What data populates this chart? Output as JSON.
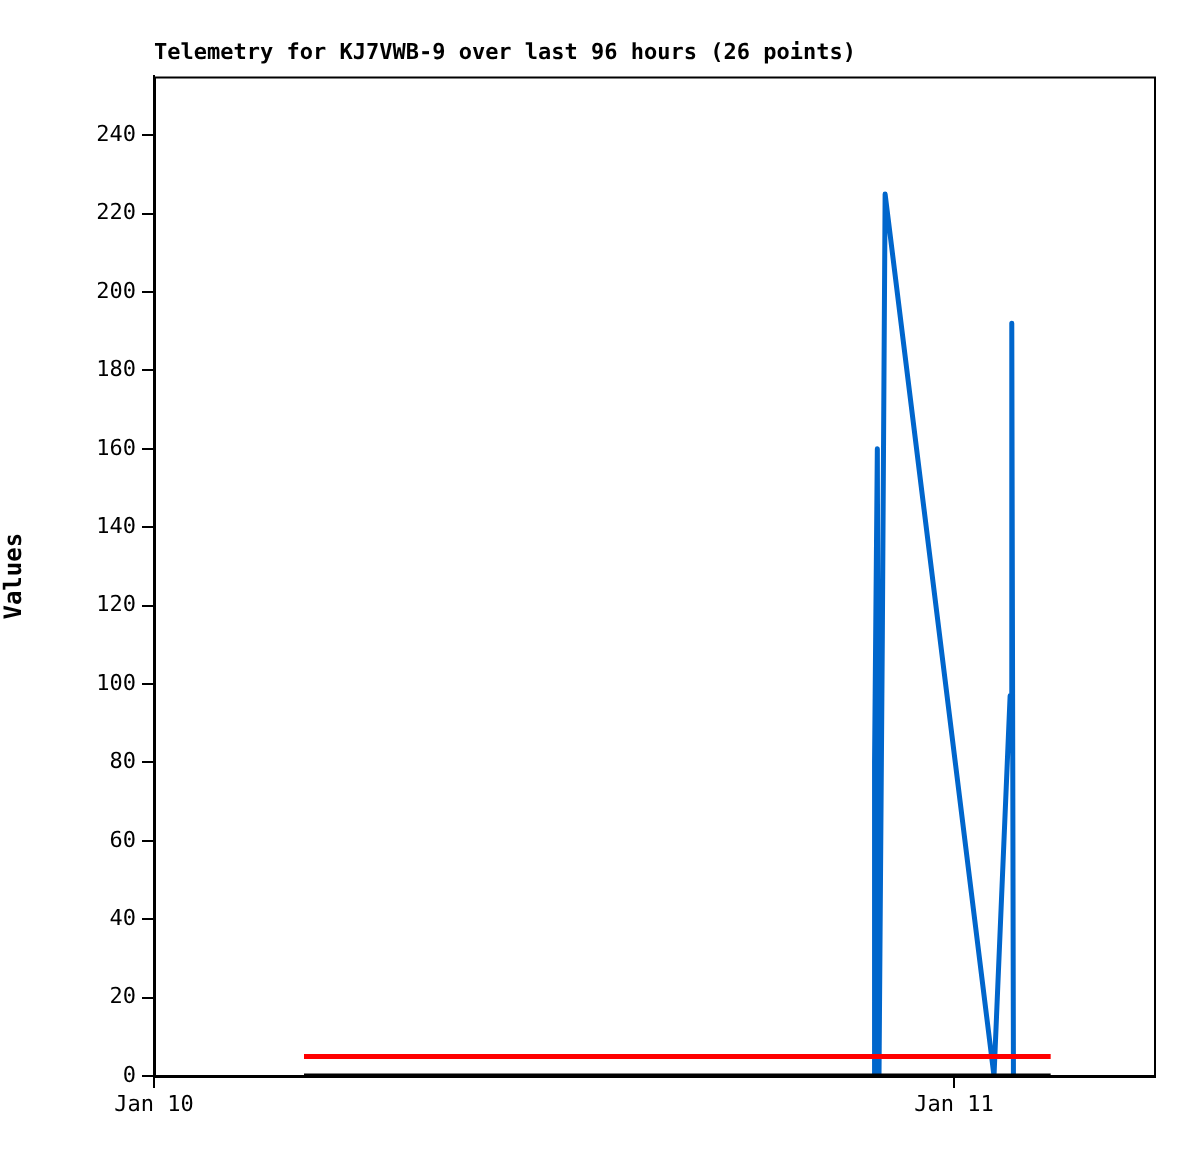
{
  "chart_data": {
    "type": "line",
    "title": "Telemetry for KJ7VWB-9 over last 96 hours (26 points)",
    "ylabel": "Values",
    "xlim": [
      "--01-10",
      "--01-11T06:00"
    ],
    "xticks": [
      {
        "value": "--01-10",
        "label": "Jan 10"
      },
      {
        "value": "--01-11",
        "label": "Jan 11"
      }
    ],
    "ylim": [
      0,
      255
    ],
    "yticks": [
      0,
      20,
      40,
      60,
      80,
      100,
      120,
      140,
      160,
      180,
      200,
      220,
      240
    ],
    "grid": false,
    "legend": false,
    "marker": "none",
    "line_style": "solid",
    "series": [
      {
        "color": "#000000",
        "x": [
          "--01-10T04:30",
          "--01-11T02:54"
        ],
        "values": [
          0,
          0
        ]
      },
      {
        "color": "#ff0000",
        "x": [
          "--01-10T04:30",
          "--01-11T02:54"
        ],
        "values": [
          5,
          5
        ]
      },
      {
        "color": "#0066cc",
        "x": [
          "--01-10T21:36",
          "--01-10T21:37",
          "--01-10T21:42",
          "--01-10T21:45",
          "--01-10T21:51",
          "--01-10T21:56",
          "--01-11T01:12",
          "--01-11T01:41",
          "--01-11T01:44",
          "--01-11T01:47"
        ],
        "values": [
          0,
          80,
          160,
          0,
          112,
          225,
          0,
          97,
          192,
          0
        ]
      }
    ]
  }
}
